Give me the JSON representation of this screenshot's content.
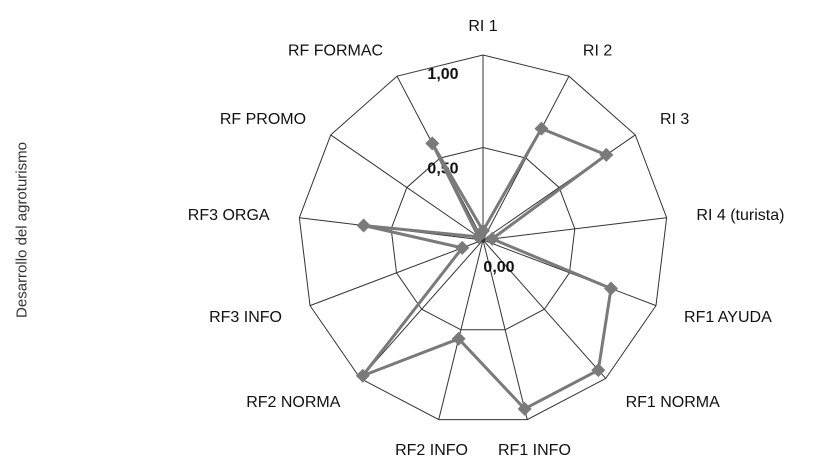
{
  "chart_data": {
    "type": "radar",
    "ylabel": "Desarrollo del agroturismo",
    "categories": [
      "RI 1",
      "RI 2",
      "RI 3",
      "RI 4 (turista)",
      "RF1 AYUDA",
      "RF1 NORMA",
      "RF1 INFO",
      "RF2 INFO",
      "RF2 NORMA",
      "RF3 INFO",
      "RF3 ORGA",
      "RF PROMO",
      "RF FORMAC"
    ],
    "tick_labels": [
      "0,00",
      "0,50",
      "1,00"
    ],
    "rlim": [
      0,
      1
    ],
    "series": [
      {
        "values": [
          0.05,
          0.68,
          0.81,
          0.05,
          0.74,
          0.94,
          0.94,
          0.55,
          0.98,
          0.12,
          0.65,
          0.03,
          0.59
        ]
      }
    ],
    "colors": {
      "series": "#7a7a7a",
      "grid": "#333333"
    }
  }
}
